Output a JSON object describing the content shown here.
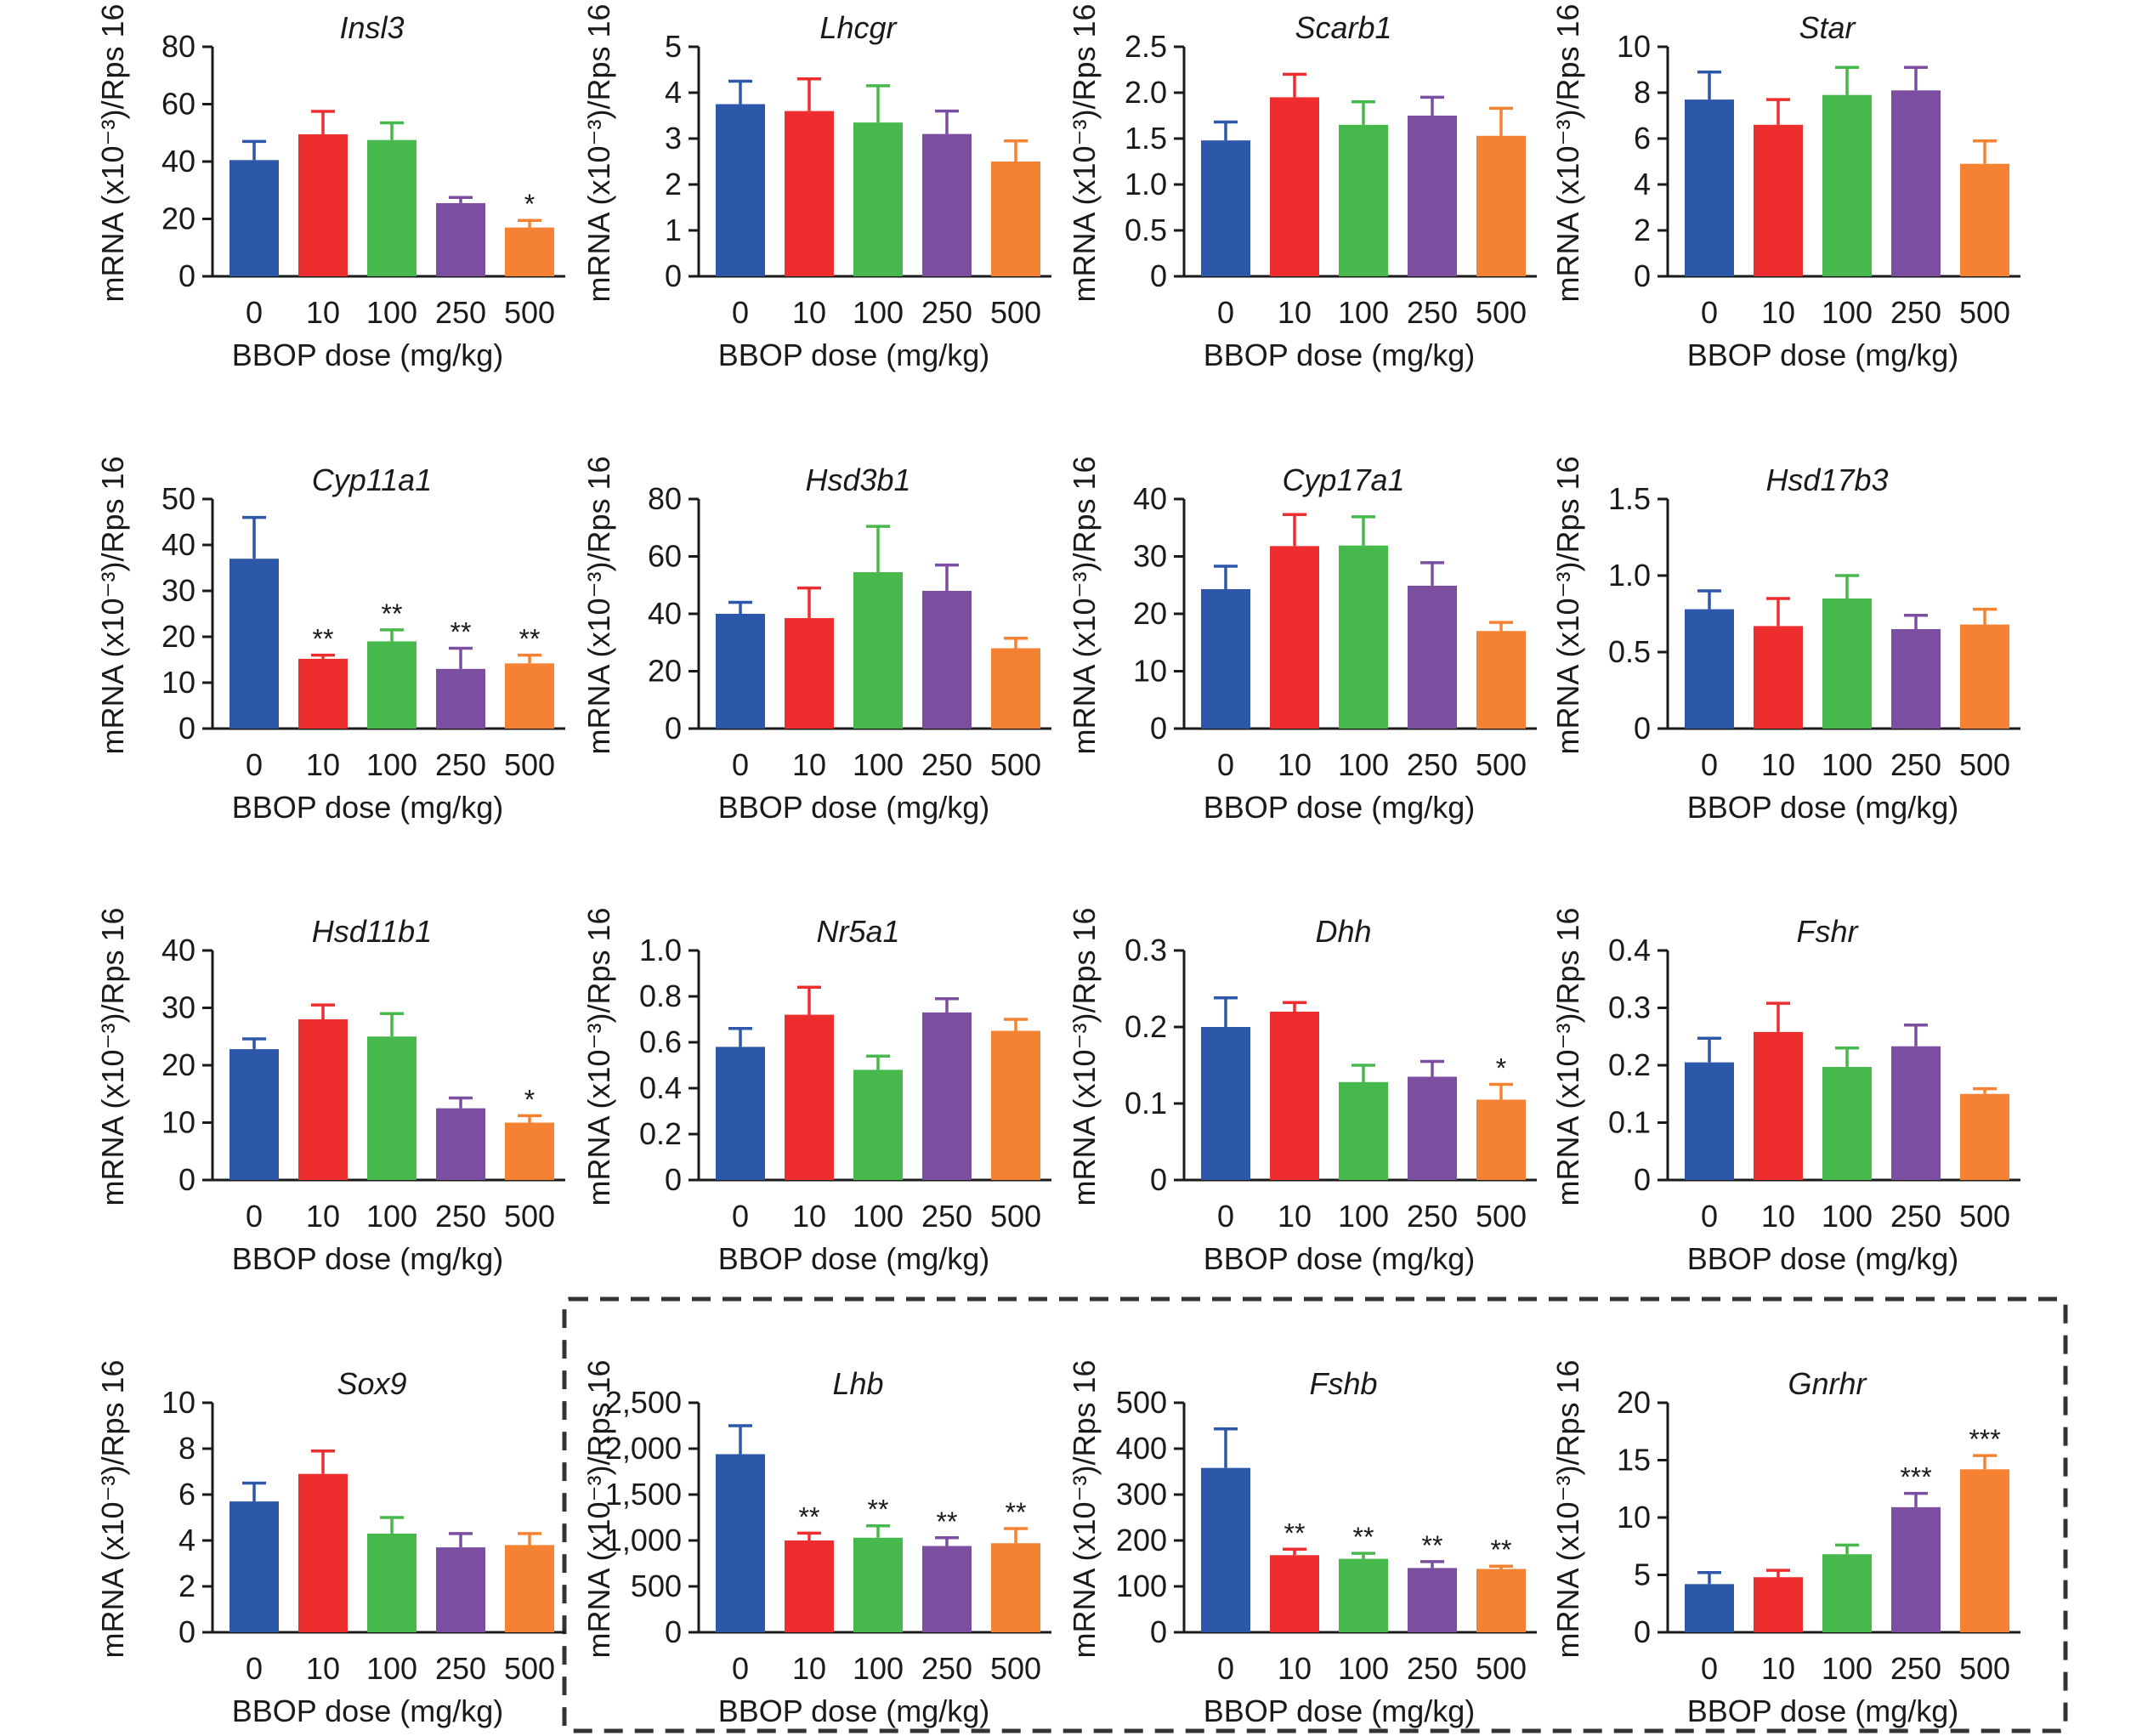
{
  "colors": {
    "0": "#2d57a8",
    "10": "#ee2e2e",
    "100": "#47b84c",
    "250": "#7b4ea0",
    "500": "#f58233"
  },
  "chart_data": [
    {
      "type": "bar",
      "title": "Insl3",
      "categories": [
        "0",
        "10",
        "100",
        "250",
        "500"
      ],
      "values": [
        40.5,
        49.5,
        47.5,
        25.5,
        17
      ],
      "errors": [
        6.5,
        8,
        6,
        2,
        2.5
      ],
      "significance": [
        "",
        "",
        "",
        "",
        "*"
      ],
      "ylim": [
        0,
        80
      ],
      "yticks": [
        "0",
        "20",
        "40",
        "60",
        "80"
      ],
      "ylabel": "mRNA (x10⁻³)/Rps 16",
      "xlabel": "BBOP dose (mg/kg)",
      "grid": false,
      "legend": "none"
    },
    {
      "type": "bar",
      "title": "Lhcgr",
      "categories": [
        "0",
        "10",
        "100",
        "250",
        "500"
      ],
      "values": [
        3.75,
        3.6,
        3.35,
        3.1,
        2.5
      ],
      "errors": [
        0.5,
        0.7,
        0.8,
        0.5,
        0.45
      ],
      "significance": [
        "",
        "",
        "",
        "",
        ""
      ],
      "ylim": [
        0,
        5
      ],
      "yticks": [
        "0",
        "1",
        "2",
        "3",
        "4",
        "5"
      ],
      "ylabel": "mRNA (x10⁻³)/Rps 16",
      "xlabel": "BBOP dose (mg/kg)",
      "grid": false,
      "legend": "none"
    },
    {
      "type": "bar",
      "title": "Scarb1",
      "categories": [
        "0",
        "10",
        "100",
        "250",
        "500"
      ],
      "values": [
        1.48,
        1.95,
        1.65,
        1.75,
        1.53
      ],
      "errors": [
        0.2,
        0.25,
        0.25,
        0.2,
        0.3
      ],
      "significance": [
        "",
        "",
        "",
        "",
        ""
      ],
      "ylim": [
        0,
        2.5
      ],
      "yticks": [
        "0",
        "0.5",
        "1.0",
        "1.5",
        "2.0",
        "2.5"
      ],
      "ylabel": "mRNA (x10⁻³)/Rps 16",
      "xlabel": "BBOP dose (mg/kg)",
      "grid": false,
      "legend": "none"
    },
    {
      "type": "bar",
      "title": "Star",
      "categories": [
        "0",
        "10",
        "100",
        "250",
        "500"
      ],
      "values": [
        7.7,
        6.6,
        7.9,
        8.1,
        4.9
      ],
      "errors": [
        1.2,
        1.1,
        1.2,
        1.0,
        1.0
      ],
      "significance": [
        "",
        "",
        "",
        "",
        ""
      ],
      "ylim": [
        0,
        10
      ],
      "yticks": [
        "0",
        "2",
        "4",
        "6",
        "8",
        "10"
      ],
      "ylabel": "mRNA (x10⁻³)/Rps 16",
      "xlabel": "BBOP dose (mg/kg)",
      "grid": false,
      "legend": "none"
    },
    {
      "type": "bar",
      "title": "Cyp11a1",
      "categories": [
        "0",
        "10",
        "100",
        "250",
        "500"
      ],
      "values": [
        37,
        15.2,
        19,
        13,
        14.2
      ],
      "errors": [
        9,
        0.8,
        2.5,
        4.5,
        1.8
      ],
      "significance": [
        "",
        "**",
        "**",
        "**",
        "**"
      ],
      "ylim": [
        0,
        50
      ],
      "yticks": [
        "0",
        "10",
        "20",
        "30",
        "40",
        "50"
      ],
      "ylabel": "mRNA (x10⁻³)/Rps 16",
      "xlabel": "BBOP dose (mg/kg)",
      "grid": false,
      "legend": "none"
    },
    {
      "type": "bar",
      "title": "Hsd3b1",
      "categories": [
        "0",
        "10",
        "100",
        "250",
        "500"
      ],
      "values": [
        40,
        38.5,
        54.5,
        48,
        28
      ],
      "errors": [
        4,
        10.5,
        16,
        9,
        3.5
      ],
      "significance": [
        "",
        "",
        "",
        "",
        ""
      ],
      "ylim": [
        0,
        80
      ],
      "yticks": [
        "0",
        "20",
        "40",
        "60",
        "80"
      ],
      "ylabel": "mRNA (x10⁻³)/Rps 16",
      "xlabel": "BBOP dose (mg/kg)",
      "grid": false,
      "legend": "none"
    },
    {
      "type": "bar",
      "title": "Cyp17a1",
      "categories": [
        "0",
        "10",
        "100",
        "250",
        "500"
      ],
      "values": [
        24.3,
        31.8,
        31.9,
        24.9,
        17
      ],
      "errors": [
        4,
        5.5,
        5,
        4,
        1.5
      ],
      "significance": [
        "",
        "",
        "",
        "",
        ""
      ],
      "ylim": [
        0,
        40
      ],
      "yticks": [
        "0",
        "10",
        "20",
        "30",
        "40"
      ],
      "ylabel": "mRNA (x10⁻³)/Rps 16",
      "xlabel": "BBOP dose (mg/kg)",
      "grid": false,
      "legend": "none"
    },
    {
      "type": "bar",
      "title": "Hsd17b3",
      "categories": [
        "0",
        "10",
        "100",
        "250",
        "500"
      ],
      "values": [
        0.78,
        0.67,
        0.85,
        0.65,
        0.68
      ],
      "errors": [
        0.12,
        0.18,
        0.15,
        0.09,
        0.1
      ],
      "significance": [
        "",
        "",
        "",
        "",
        ""
      ],
      "ylim": [
        0,
        1.5
      ],
      "yticks": [
        "0",
        "0.5",
        "1.0",
        "1.5"
      ],
      "ylabel": "mRNA (x10⁻³)/Rps 16",
      "xlabel": "BBOP dose (mg/kg)",
      "grid": false,
      "legend": "none"
    },
    {
      "type": "bar",
      "title": "Hsd11b1",
      "categories": [
        "0",
        "10",
        "100",
        "250",
        "500"
      ],
      "values": [
        22.8,
        28,
        25,
        12.5,
        10
      ],
      "errors": [
        1.8,
        2.5,
        4,
        1.8,
        1.2
      ],
      "significance": [
        "",
        "",
        "",
        "",
        "*"
      ],
      "ylim": [
        0,
        40
      ],
      "yticks": [
        "0",
        "10",
        "20",
        "30",
        "40"
      ],
      "ylabel": "mRNA (x10⁻³)/Rps 16",
      "xlabel": "BBOP dose (mg/kg)",
      "grid": false,
      "legend": "none"
    },
    {
      "type": "bar",
      "title": "Nr5a1",
      "categories": [
        "0",
        "10",
        "100",
        "250",
        "500"
      ],
      "values": [
        0.58,
        0.72,
        0.48,
        0.73,
        0.65
      ],
      "errors": [
        0.08,
        0.12,
        0.06,
        0.06,
        0.05
      ],
      "significance": [
        "",
        "",
        "",
        "",
        ""
      ],
      "ylim": [
        0,
        1.0
      ],
      "yticks": [
        "0",
        "0.2",
        "0.4",
        "0.6",
        "0.8",
        "1.0"
      ],
      "ylabel": "mRNA (x10⁻³)/Rps 16",
      "xlabel": "BBOP dose (mg/kg)",
      "grid": false,
      "legend": "none"
    },
    {
      "type": "bar",
      "title": "Dhh",
      "categories": [
        "0",
        "10",
        "100",
        "250",
        "500"
      ],
      "values": [
        0.2,
        0.22,
        0.128,
        0.135,
        0.105
      ],
      "errors": [
        0.038,
        0.012,
        0.022,
        0.02,
        0.02
      ],
      "significance": [
        "",
        "",
        "",
        "",
        "*"
      ],
      "ylim": [
        0,
        0.3
      ],
      "yticks": [
        "0",
        "0.1",
        "0.2",
        "0.3"
      ],
      "ylabel": "mRNA (x10⁻³)/Rps 16",
      "xlabel": "BBOP dose (mg/kg)",
      "grid": false,
      "legend": "none"
    },
    {
      "type": "bar",
      "title": "Fshr",
      "categories": [
        "0",
        "10",
        "100",
        "250",
        "500"
      ],
      "values": [
        0.205,
        0.258,
        0.197,
        0.233,
        0.15
      ],
      "errors": [
        0.042,
        0.05,
        0.033,
        0.037,
        0.009
      ],
      "significance": [
        "",
        "",
        "",
        "",
        ""
      ],
      "ylim": [
        0,
        0.4
      ],
      "yticks": [
        "0",
        "0.1",
        "0.2",
        "0.3",
        "0.4"
      ],
      "ylabel": "mRNA (x10⁻³)/Rps 16",
      "xlabel": "BBOP dose (mg/kg)",
      "grid": false,
      "legend": "none"
    },
    {
      "type": "bar",
      "title": "Sox9",
      "categories": [
        "0",
        "10",
        "100",
        "250",
        "500"
      ],
      "values": [
        5.7,
        6.9,
        4.3,
        3.7,
        3.8
      ],
      "errors": [
        0.8,
        1.0,
        0.7,
        0.6,
        0.5
      ],
      "significance": [
        "",
        "",
        "",
        "",
        ""
      ],
      "ylim": [
        0,
        10
      ],
      "yticks": [
        "0",
        "2",
        "4",
        "6",
        "8",
        "10"
      ],
      "ylabel": "mRNA (x10⁻³)/Rps 16",
      "xlabel": "BBOP dose (mg/kg)",
      "grid": false,
      "legend": "none"
    },
    {
      "type": "bar",
      "title": "Lhb",
      "categories": [
        "0",
        "10",
        "100",
        "250",
        "500"
      ],
      "values": [
        1940,
        1000,
        1030,
        940,
        970
      ],
      "errors": [
        310,
        80,
        130,
        90,
        160
      ],
      "significance": [
        "",
        "**",
        "**",
        "**",
        "**"
      ],
      "ylim": [
        0,
        2500
      ],
      "yticks": [
        "0",
        "500",
        "1,000",
        "1,500",
        "2,000",
        "2,500"
      ],
      "ylabel": "mRNA (x10⁻³)/Rps 16",
      "xlabel": "BBOP dose (mg/kg)",
      "grid": false,
      "legend": "none"
    },
    {
      "type": "bar",
      "title": "Fshb",
      "categories": [
        "0",
        "10",
        "100",
        "250",
        "500"
      ],
      "values": [
        358,
        168,
        160,
        140,
        138
      ],
      "errors": [
        85,
        13,
        12,
        14,
        6
      ],
      "significance": [
        "",
        "**",
        "**",
        "**",
        "**"
      ],
      "ylim": [
        0,
        500
      ],
      "yticks": [
        "0",
        "100",
        "200",
        "300",
        "400",
        "500"
      ],
      "ylabel": "mRNA (x10⁻³)/Rps 16",
      "xlabel": "BBOP dose (mg/kg)",
      "grid": false,
      "legend": "none"
    },
    {
      "type": "bar",
      "title": "Gnrhr",
      "categories": [
        "0",
        "10",
        "100",
        "250",
        "500"
      ],
      "values": [
        4.2,
        4.8,
        6.8,
        10.9,
        14.2
      ],
      "errors": [
        1.0,
        0.6,
        0.8,
        1.2,
        1.2
      ],
      "significance": [
        "",
        "",
        "",
        "***",
        "***"
      ],
      "ylim": [
        0,
        20
      ],
      "yticks": [
        "0",
        "5",
        "10",
        "15",
        "20"
      ],
      "ylabel": "mRNA (x10⁻³)/Rps 16",
      "xlabel": "BBOP dose (mg/kg)",
      "grid": false,
      "legend": "none"
    }
  ]
}
